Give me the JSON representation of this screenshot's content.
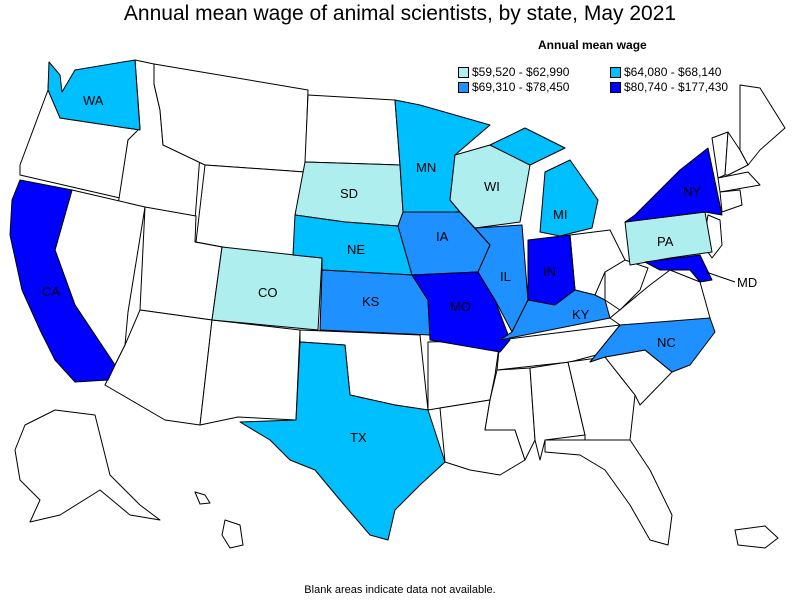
{
  "title": "Annual mean wage of animal scientists, by state, May 2021",
  "legend": {
    "title": "Annual mean wage",
    "ranges": [
      {
        "label": "$59,520 - $62,990",
        "color": "#aeeeee"
      },
      {
        "label": "$64,080 - $68,140",
        "color": "#00bfff"
      },
      {
        "label": "$69,310 - $78,450",
        "color": "#1e90ff"
      },
      {
        "label": "$80,740 - $177,430",
        "color": "#0000ff"
      }
    ]
  },
  "footnote": "Blank areas indicate data not available.",
  "colors": {
    "no_data": "#ffffff",
    "border": "#000000"
  },
  "states": [
    {
      "abbr": "WA",
      "bin": 1
    },
    {
      "abbr": "MN",
      "bin": 1
    },
    {
      "abbr": "MI",
      "bin": 1
    },
    {
      "abbr": "NE",
      "bin": 1
    },
    {
      "abbr": "TX",
      "bin": 1
    },
    {
      "abbr": "SD",
      "bin": 0
    },
    {
      "abbr": "WI",
      "bin": 0
    },
    {
      "abbr": "CO",
      "bin": 0
    },
    {
      "abbr": "PA",
      "bin": 0
    },
    {
      "abbr": "IA",
      "bin": 2
    },
    {
      "abbr": "IL",
      "bin": 2
    },
    {
      "abbr": "KS",
      "bin": 2
    },
    {
      "abbr": "KY",
      "bin": 2
    },
    {
      "abbr": "NC",
      "bin": 2
    },
    {
      "abbr": "CA",
      "bin": 3
    },
    {
      "abbr": "MO",
      "bin": 3
    },
    {
      "abbr": "IN",
      "bin": 3
    },
    {
      "abbr": "NY",
      "bin": 3
    },
    {
      "abbr": "MD",
      "bin": 3
    }
  ]
}
